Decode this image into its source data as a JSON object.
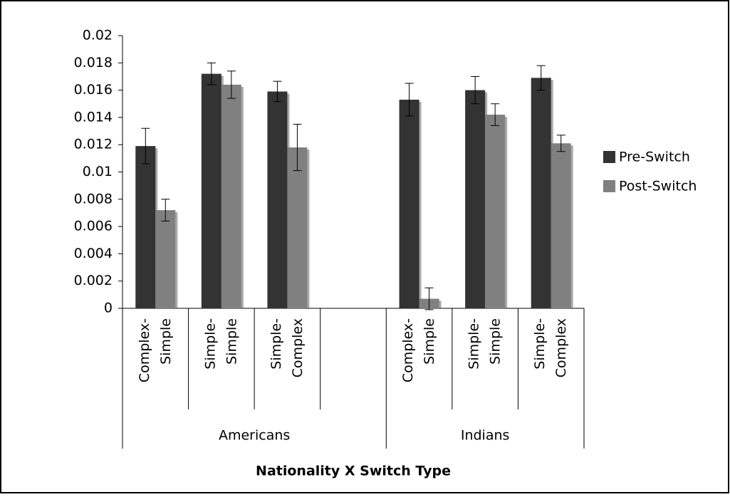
{
  "chart_data": {
    "type": "bar",
    "x_label": "Nationality X Switch Type",
    "groups": [
      {
        "name": "Americans",
        "categories": [
          [
            "Complex-",
            "Simple"
          ],
          [
            "Simple-",
            "Simple"
          ],
          [
            "Simple-",
            "Complex"
          ],
          null
        ]
      },
      {
        "name": "Indians",
        "categories": [
          [
            "Complex-",
            "Simple"
          ],
          [
            "Simple-",
            "Simple"
          ],
          [
            "Simple-",
            "Complex"
          ]
        ]
      }
    ],
    "series": [
      {
        "name": "Pre-Switch",
        "color": "#333333",
        "values": [
          0.0119,
          0.0172,
          0.0159,
          null,
          0.0153,
          0.016,
          0.0169
        ],
        "errors": [
          0.0013,
          0.0008,
          0.00075,
          null,
          0.0012,
          0.001,
          0.0009
        ]
      },
      {
        "name": "Post-Switch",
        "color": "#808080",
        "values": [
          0.0072,
          0.0164,
          0.0118,
          null,
          0.0007,
          0.0142,
          0.0121
        ],
        "errors": [
          0.0008,
          0.001,
          0.0017,
          null,
          0.0008,
          0.0008,
          0.0006
        ]
      }
    ],
    "ylim": [
      0,
      0.02
    ],
    "yticks": [
      0,
      0.002,
      0.004,
      0.006,
      0.008,
      0.01,
      0.012,
      0.014,
      0.016,
      0.018,
      0.02
    ],
    "legend": "right"
  }
}
